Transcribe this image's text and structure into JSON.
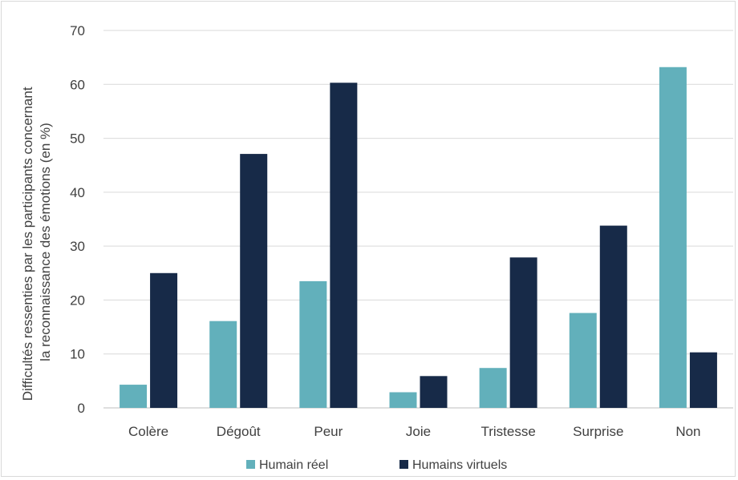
{
  "chart_data": {
    "type": "bar",
    "title": "",
    "xlabel": "",
    "ylabel": "Difficultés ressenties par les participants concernant la reconnaissance des émotions (en %)",
    "ylabel_lines": [
      "Difficultés ressenties par les participants concernant",
      "la reconnaissance des émotions (en %)"
    ],
    "categories": [
      "Colère",
      "Dégoût",
      "Peur",
      "Joie",
      "Tristesse",
      "Surprise",
      "Non"
    ],
    "series": [
      {
        "name": "Humain réel",
        "color": "#62b0bb",
        "values": [
          4.3,
          16.1,
          23.5,
          2.9,
          7.4,
          17.6,
          63.2
        ]
      },
      {
        "name": "Humains virtuels",
        "color": "#172a48",
        "values": [
          25.0,
          47.1,
          60.3,
          5.9,
          27.9,
          33.8,
          10.3
        ]
      }
    ],
    "ylim": [
      0,
      70
    ],
    "yticks": [
      0,
      10,
      20,
      30,
      40,
      50,
      60,
      70
    ],
    "grid": true,
    "legend_position": "bottom"
  }
}
